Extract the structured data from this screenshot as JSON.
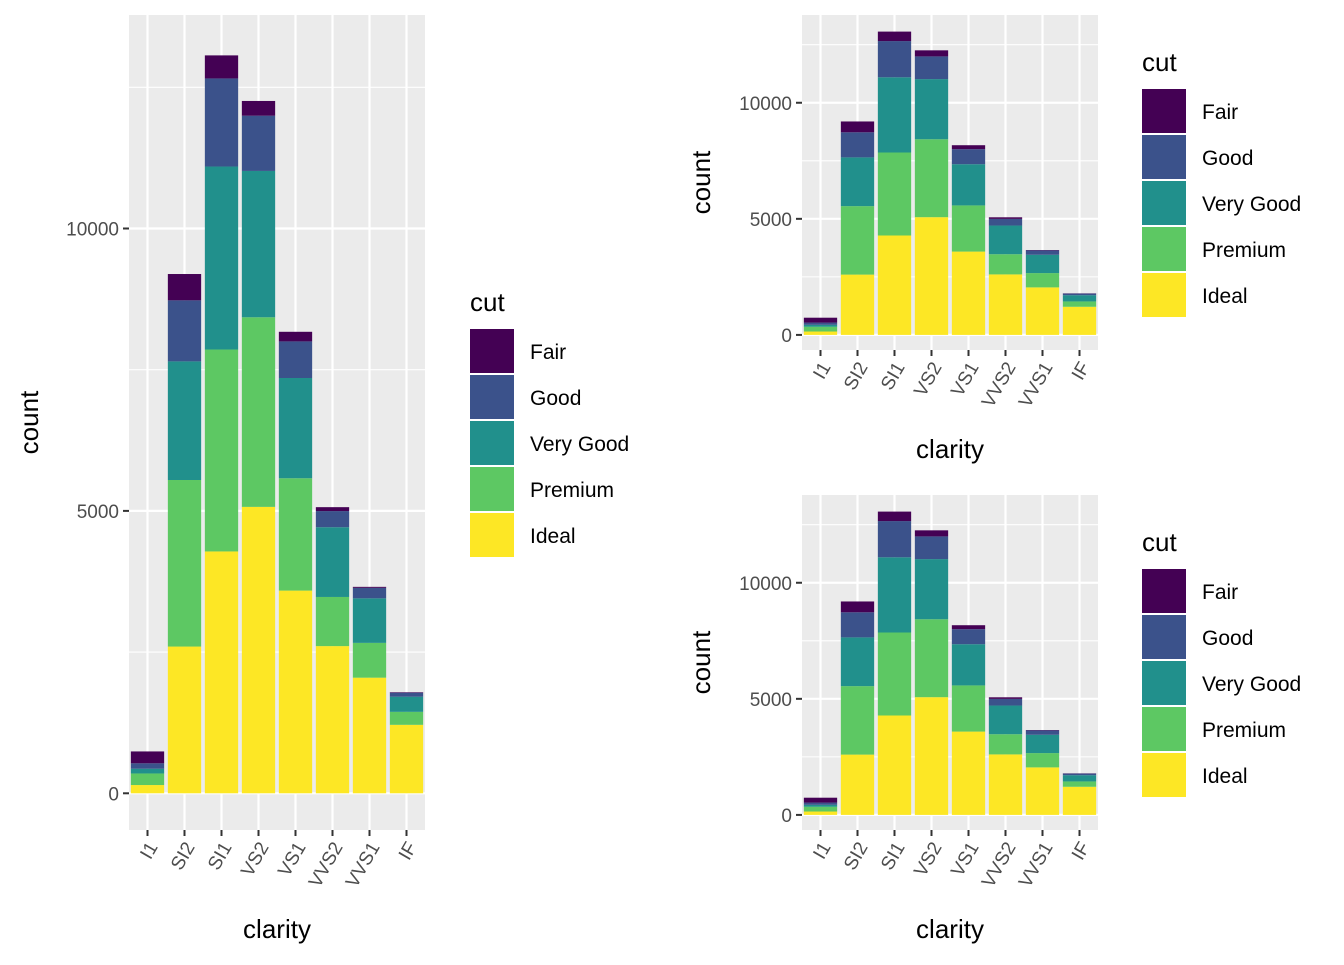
{
  "chart_data": [
    {
      "type": "bar",
      "stacked": true,
      "categories": [
        "I1",
        "SI2",
        "SI1",
        "VS2",
        "VS1",
        "VVS2",
        "VVS1",
        "IF"
      ],
      "series": [
        {
          "name": "Fair",
          "color": "#440154",
          "values": [
            210,
            466,
            408,
            261,
            170,
            69,
            17,
            9
          ]
        },
        {
          "name": "Good",
          "color": "#3B528B",
          "values": [
            96,
            1081,
            1560,
            978,
            648,
            286,
            186,
            71
          ]
        },
        {
          "name": "Very Good",
          "color": "#21908C",
          "values": [
            84,
            2100,
            3240,
            2591,
            1775,
            1235,
            789,
            268
          ]
        },
        {
          "name": "Premium",
          "color": "#5DC863",
          "values": [
            205,
            2949,
            3575,
            3357,
            1989,
            870,
            616,
            230
          ]
        },
        {
          "name": "Ideal",
          "color": "#FDE725",
          "values": [
            146,
            2598,
            4282,
            5071,
            3589,
            2606,
            2047,
            1212
          ]
        }
      ],
      "xlabel": "clarity",
      "ylabel": "count",
      "ylim": [
        -650,
        13780
      ],
      "yticks": [
        0,
        5000,
        10000
      ],
      "ytick_labels": [
        "0",
        "5000",
        "10000"
      ],
      "xtick_rotation": -60,
      "grid": true,
      "legend_title": "cut",
      "legend_labels": [
        "Fair",
        "Good",
        "Very Good",
        "Premium",
        "Ideal"
      ],
      "legend_position": "right"
    },
    {
      "type": "bar",
      "stacked": true,
      "categories": [
        "I1",
        "SI2",
        "SI1",
        "VS2",
        "VS1",
        "VVS2",
        "VVS1",
        "IF"
      ],
      "series": [
        {
          "name": "Fair",
          "color": "#440154",
          "values": [
            210,
            466,
            408,
            261,
            170,
            69,
            17,
            9
          ]
        },
        {
          "name": "Good",
          "color": "#3B528B",
          "values": [
            96,
            1081,
            1560,
            978,
            648,
            286,
            186,
            71
          ]
        },
        {
          "name": "Very Good",
          "color": "#21908C",
          "values": [
            84,
            2100,
            3240,
            2591,
            1775,
            1235,
            789,
            268
          ]
        },
        {
          "name": "Premium",
          "color": "#5DC863",
          "values": [
            205,
            2949,
            3575,
            3357,
            1989,
            870,
            616,
            230
          ]
        },
        {
          "name": "Ideal",
          "color": "#FDE725",
          "values": [
            146,
            2598,
            4282,
            5071,
            3589,
            2606,
            2047,
            1212
          ]
        }
      ],
      "xlabel": "clarity",
      "ylabel": "count",
      "ylim": [
        -650,
        13780
      ],
      "yticks": [
        0,
        5000,
        10000
      ],
      "ytick_labels": [
        "0",
        "5000",
        "10000"
      ],
      "xtick_rotation": -60,
      "grid": true,
      "legend_title": "cut",
      "legend_labels": [
        "Fair",
        "Good",
        "Very Good",
        "Premium",
        "Ideal"
      ],
      "legend_position": "right"
    },
    {
      "type": "bar",
      "stacked": true,
      "categories": [
        "I1",
        "SI2",
        "SI1",
        "VS2",
        "VS1",
        "VVS2",
        "VVS1",
        "IF"
      ],
      "series": [
        {
          "name": "Fair",
          "color": "#440154",
          "values": [
            210,
            466,
            408,
            261,
            170,
            69,
            17,
            9
          ]
        },
        {
          "name": "Good",
          "color": "#3B528B",
          "values": [
            96,
            1081,
            1560,
            978,
            648,
            286,
            186,
            71
          ]
        },
        {
          "name": "Very Good",
          "color": "#21908C",
          "values": [
            84,
            2100,
            3240,
            2591,
            1775,
            1235,
            789,
            268
          ]
        },
        {
          "name": "Premium",
          "color": "#5DC863",
          "values": [
            205,
            2949,
            3575,
            3357,
            1989,
            870,
            616,
            230
          ]
        },
        {
          "name": "Ideal",
          "color": "#FDE725",
          "values": [
            146,
            2598,
            4282,
            5071,
            3589,
            2606,
            2047,
            1212
          ]
        }
      ],
      "xlabel": "clarity",
      "ylabel": "count",
      "ylim": [
        -650,
        13780
      ],
      "yticks": [
        0,
        5000,
        10000
      ],
      "ytick_labels": [
        "0",
        "5000",
        "10000"
      ],
      "xtick_rotation": -60,
      "grid": true,
      "legend_title": "cut",
      "legend_labels": [
        "Fair",
        "Good",
        "Very Good",
        "Premium",
        "Ideal"
      ],
      "legend_position": "right"
    }
  ]
}
